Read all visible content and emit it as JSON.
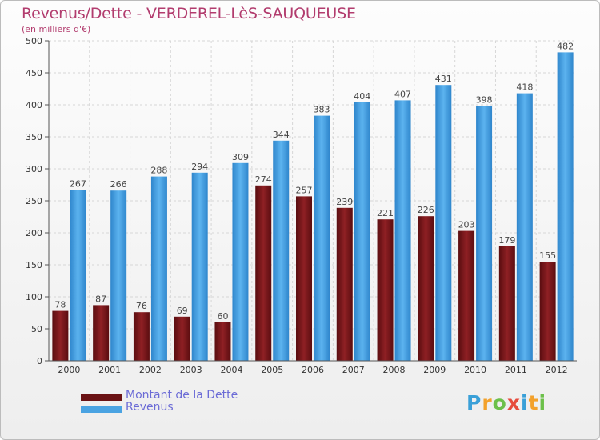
{
  "title": "Revenus/Dette - VERDEREL-LèS-SAUQUEUSE",
  "subtitle": "(en milliers d'€)",
  "logo": {
    "letters": [
      "P",
      "r",
      "o",
      "x",
      "i",
      "t",
      "i"
    ],
    "colors": [
      "#3aa0d8",
      "#f3a12b",
      "#6cc04a",
      "#e64b3c",
      "#3aa0d8",
      "#f3a12b",
      "#6cc04a"
    ]
  },
  "chart_data": {
    "type": "bar",
    "categories": [
      "2000",
      "2001",
      "2002",
      "2003",
      "2004",
      "2005",
      "2006",
      "2007",
      "2008",
      "2009",
      "2010",
      "2011",
      "2012"
    ],
    "series": [
      {
        "name": "Montant de la Dette",
        "color": "#7a1618",
        "values": [
          78,
          87,
          76,
          69,
          60,
          274,
          257,
          239,
          221,
          226,
          203,
          179,
          155
        ]
      },
      {
        "name": "Revenus",
        "color": "#4aa3e2",
        "values": [
          267,
          266,
          288,
          294,
          309,
          344,
          383,
          404,
          407,
          431,
          398,
          418,
          482
        ]
      }
    ],
    "ylim": [
      0,
      500
    ],
    "yticks": [
      0,
      50,
      100,
      150,
      200,
      250,
      300,
      350,
      400,
      450,
      500
    ],
    "grid": true,
    "legend_position": "bottom-left"
  }
}
